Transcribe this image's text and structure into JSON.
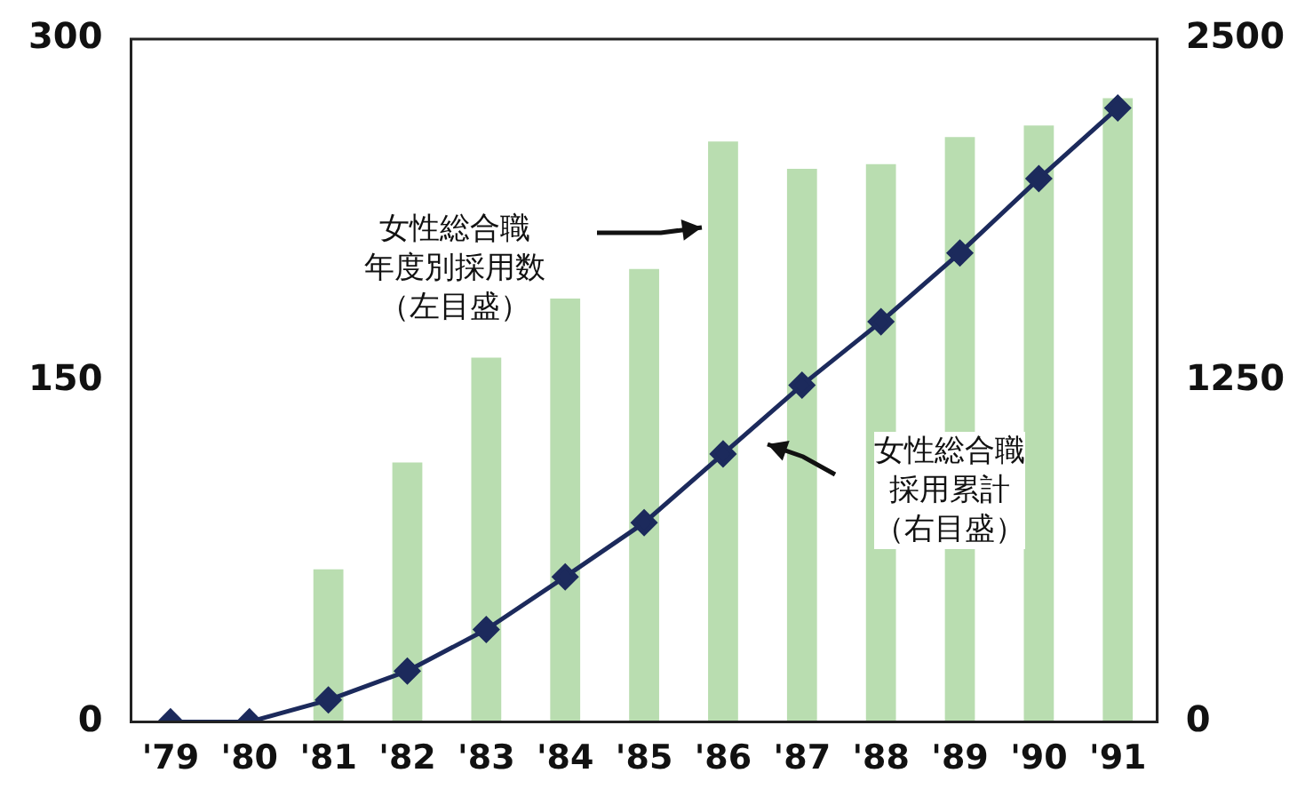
{
  "chart_data": {
    "type": "bar",
    "categories": [
      "'79",
      "'80",
      "'81",
      "'82",
      "'83",
      "'84",
      "'85",
      "'86",
      "'87",
      "'88",
      "'89",
      "'90",
      "'91"
    ],
    "series": [
      {
        "color": "#b9ddb0",
        "values": [
          0,
          0,
          67,
          114,
          160,
          186,
          199,
          255,
          243,
          245,
          257,
          262,
          274
        ]
      },
      {
        "type": "line",
        "axis": "y2",
        "color": "#1c2a5c",
        "marker": "diamond",
        "values": [
          0,
          0,
          80,
          186,
          338,
          531,
          729,
          981,
          1233,
          1465,
          1717,
          1989,
          2248
        ]
      }
    ],
    "ylim": [
      0,
      300
    ],
    "yticks": [
      0,
      150,
      300
    ],
    "y2lim": [
      0,
      2500
    ],
    "y2ticks": [
      0,
      1250,
      2500
    ],
    "grid": false,
    "legend": false,
    "annotations": [
      "女性総合職年度別採用数（左目盛）",
      "女性総合職採用累計（右目盛）"
    ]
  }
}
